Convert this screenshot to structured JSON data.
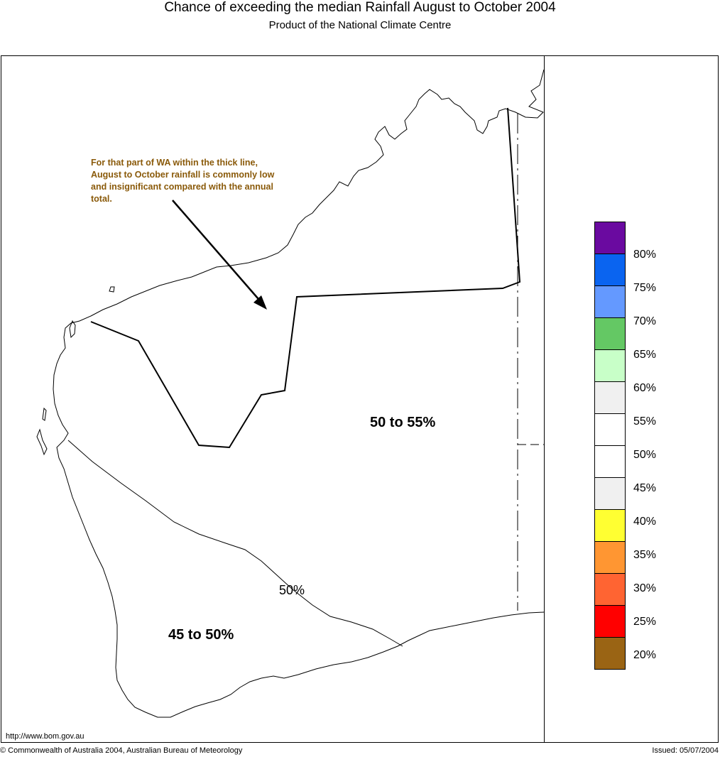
{
  "title": "Chance of exceeding the median Rainfall August to October 2004",
  "subtitle": "Product of the National Climate Centre",
  "annotation": "For that part of WA within the thick line, August to October rainfall is commonly low and insignificant compared with the annual total.",
  "regions": {
    "north": "50 to 55%",
    "south": "45 to 50%",
    "contour": "50%"
  },
  "legend": {
    "colors": [
      "#6a0aa0",
      "#0a64f0",
      "#6499ff",
      "#64c864",
      "#c8ffc8",
      "#f0f0f0",
      "#ffffff",
      "#ffffff",
      "#f0f0f0",
      "#ffff32",
      "#ff9632",
      "#ff6432",
      "#ff0000",
      "#9a6414"
    ],
    "labels": [
      "80%",
      "75%",
      "70%",
      "65%",
      "60%",
      "55%",
      "50%",
      "45%",
      "40%",
      "35%",
      "30%",
      "25%",
      "20%"
    ]
  },
  "footer": {
    "url": "http://www.bom.gov.au",
    "copyright": "© Commonwealth of Australia 2004, Australian Bureau of Meteorology",
    "issued": "Issued: 05/07/2004"
  }
}
